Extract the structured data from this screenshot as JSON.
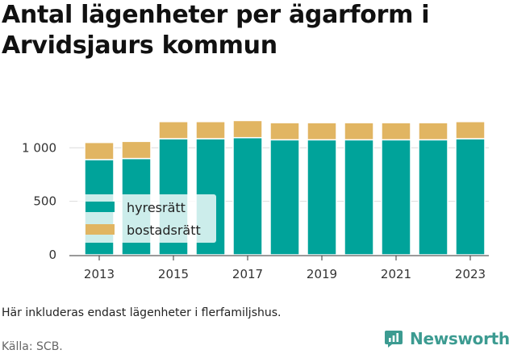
{
  "title": "Antal lägenheter per ägarform i Arvidsjaurs kommun",
  "footnote": "Här inkluderas endast lägenheter i flerfamiljshus.",
  "source": "Källa: SCB.",
  "brand": {
    "name": "Newsworthy",
    "icon": "newsworthy-logo-icon"
  },
  "chart_data": {
    "type": "bar",
    "stacked": true,
    "title": "",
    "xlabel": "",
    "ylabel": "",
    "categories": [
      2013,
      2014,
      2015,
      2016,
      2017,
      2018,
      2019,
      2020,
      2021,
      2022,
      2023
    ],
    "x_tick_labels": [
      "2013",
      "2015",
      "2017",
      "2019",
      "2021",
      "2023"
    ],
    "y_tick_labels": [
      "0",
      "500",
      "1 000"
    ],
    "y_ticks": [
      0,
      500,
      1000
    ],
    "ylim": [
      0,
      1300
    ],
    "grid": true,
    "legend_position": "left",
    "series": [
      {
        "name": "hyresrätt",
        "color": "#00a39a",
        "values": [
          890,
          900,
          1085,
          1085,
          1095,
          1075,
          1075,
          1075,
          1075,
          1075,
          1085
        ]
      },
      {
        "name": "bostadsrätt",
        "color": "#e1b562",
        "values": [
          160,
          160,
          160,
          160,
          160,
          160,
          160,
          160,
          160,
          160,
          160
        ]
      }
    ]
  }
}
